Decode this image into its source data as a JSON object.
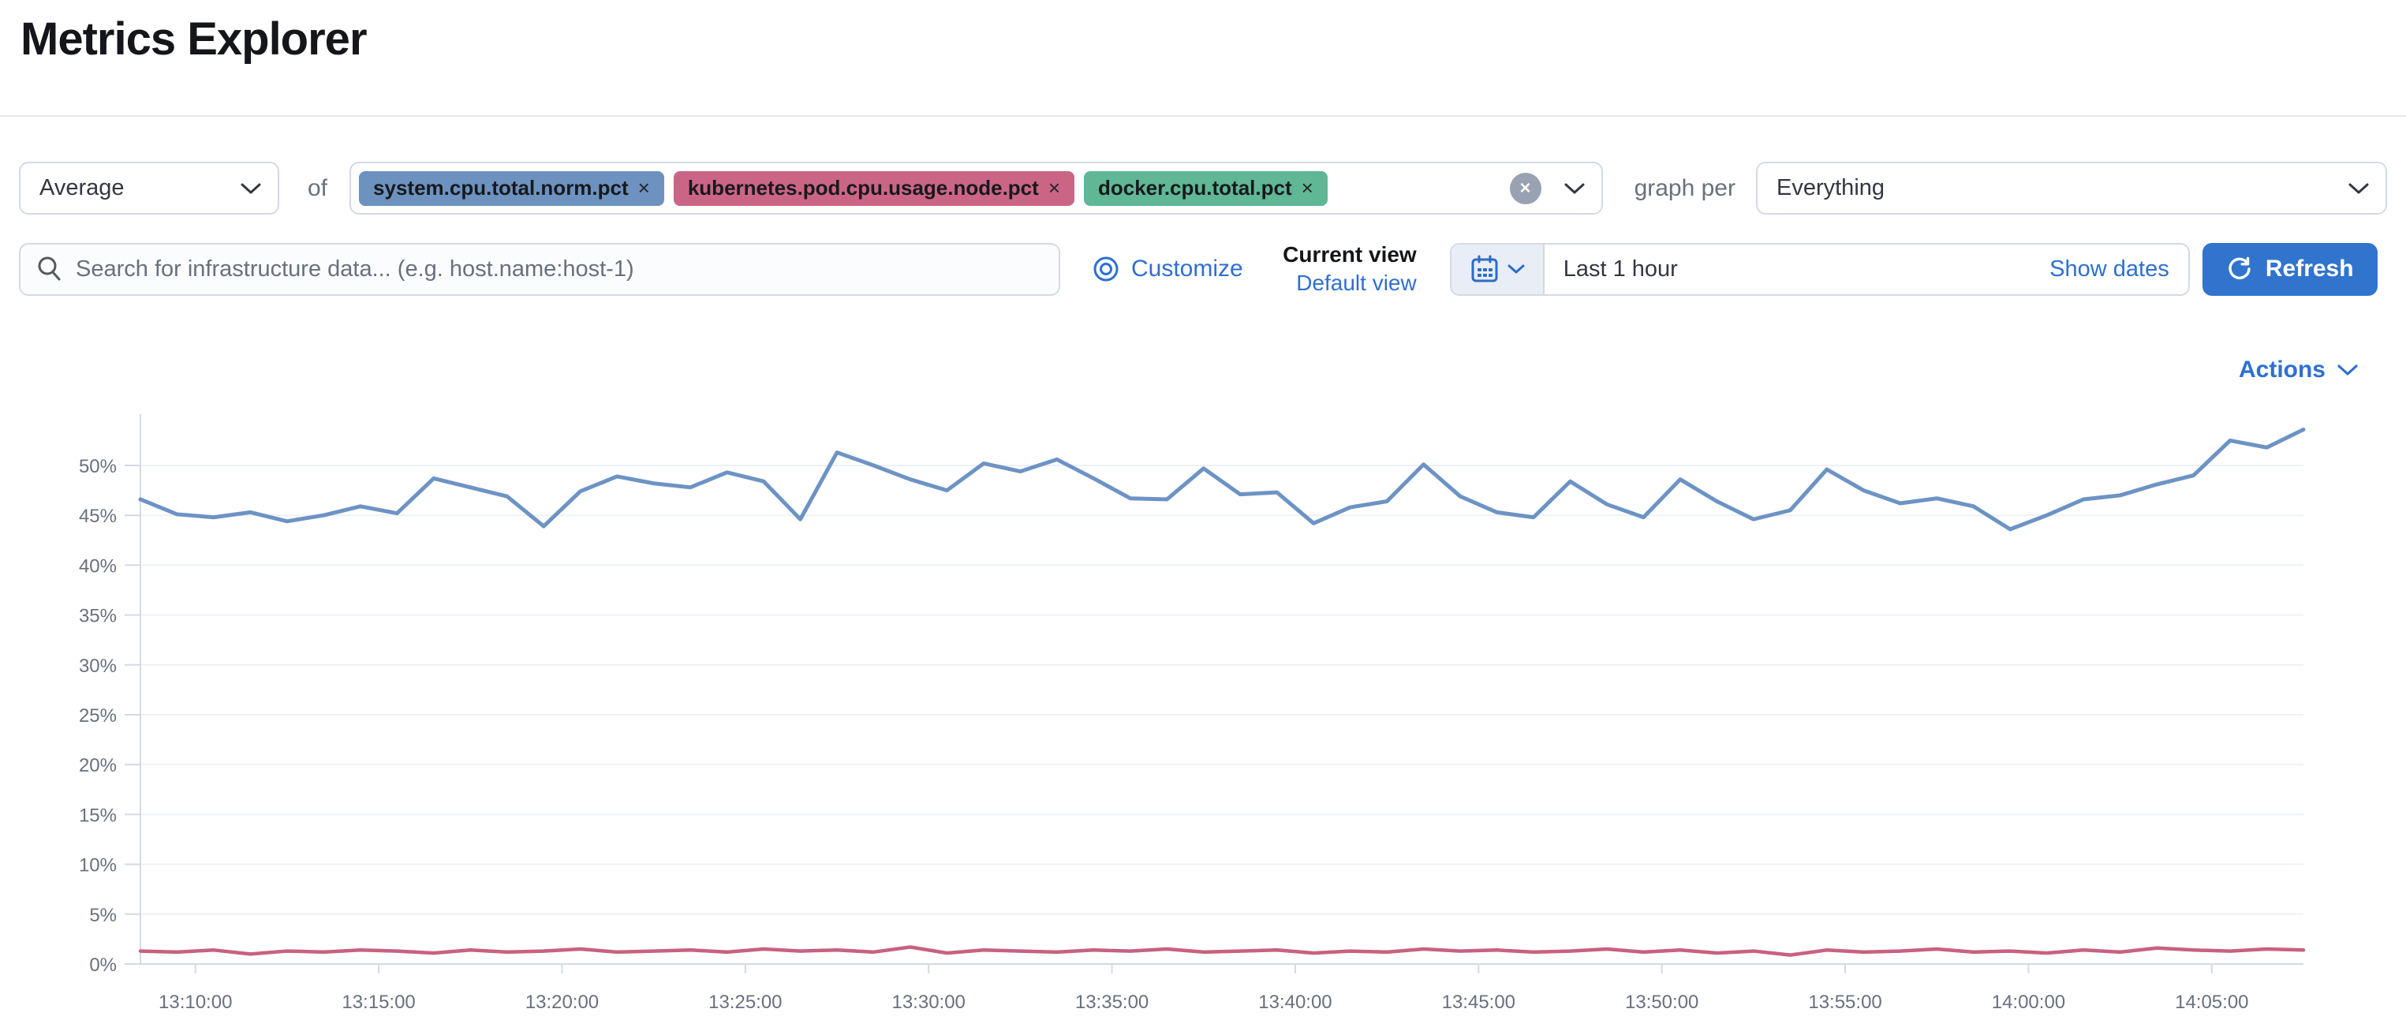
{
  "page": {
    "title": "Metrics Explorer"
  },
  "toolbar": {
    "aggregation": {
      "value": "Average"
    },
    "of_label": "of",
    "metrics": [
      {
        "label": "system.cpu.total.norm.pct",
        "remove": "×",
        "color": "#6d92bf"
      },
      {
        "label": "kubernetes.pod.cpu.usage.node.pct",
        "remove": "×",
        "color": "#cb6586"
      },
      {
        "label": "docker.cpu.total.pct",
        "remove": "×",
        "color": "#5fb795"
      }
    ],
    "clear_all": "×",
    "graph_per_label": "graph per",
    "graph_per": {
      "value": "Everything"
    }
  },
  "searchbar": {
    "placeholder": "Search for infrastructure data... (e.g. host.name:host-1)",
    "value": "",
    "customize_label": "Customize",
    "current_view_label": "Current view",
    "view_name": "Default view",
    "time_range": "Last 1 hour",
    "show_dates_label": "Show dates",
    "refresh_label": "Refresh"
  },
  "actions_label": "Actions",
  "chart_data": {
    "type": "line",
    "unit": "%",
    "ylim": [
      0,
      55
    ],
    "grid": true,
    "legend": "none",
    "y_ticks": [
      {
        "v": 0,
        "label": "0%"
      },
      {
        "v": 5,
        "label": "5%"
      },
      {
        "v": 10,
        "label": "10%"
      },
      {
        "v": 15,
        "label": "15%"
      },
      {
        "v": 20,
        "label": "20%"
      },
      {
        "v": 25,
        "label": "25%"
      },
      {
        "v": 30,
        "label": "30%"
      },
      {
        "v": 35,
        "label": "35%"
      },
      {
        "v": 40,
        "label": "40%"
      },
      {
        "v": 45,
        "label": "45%"
      },
      {
        "v": 50,
        "label": "50%"
      }
    ],
    "x_range_minutes": [
      0,
      59
    ],
    "x_ticks": [
      {
        "m": 1.5,
        "label": "13:10:00"
      },
      {
        "m": 6.5,
        "label": "13:15:00"
      },
      {
        "m": 11.5,
        "label": "13:20:00"
      },
      {
        "m": 16.5,
        "label": "13:25:00"
      },
      {
        "m": 21.5,
        "label": "13:30:00"
      },
      {
        "m": 26.5,
        "label": "13:35:00"
      },
      {
        "m": 31.5,
        "label": "13:40:00"
      },
      {
        "m": 36.5,
        "label": "13:45:00"
      },
      {
        "m": 41.5,
        "label": "13:50:00"
      },
      {
        "m": 46.5,
        "label": "13:55:00"
      },
      {
        "m": 51.5,
        "label": "14:00:00"
      },
      {
        "m": 56.5,
        "label": "14:05:00"
      }
    ],
    "series": [
      {
        "name": "system.cpu.total.norm.pct",
        "color": "#6d93c4",
        "stroke_width": 5,
        "values": [
          46.6,
          45.1,
          44.8,
          45.3,
          44.4,
          45.0,
          45.9,
          45.2,
          48.7,
          47.8,
          46.9,
          43.9,
          47.4,
          48.9,
          48.2,
          47.8,
          49.3,
          48.4,
          44.6,
          51.3,
          50.0,
          48.6,
          47.5,
          50.2,
          49.4,
          50.6,
          48.7,
          46.7,
          46.6,
          49.7,
          47.1,
          47.3,
          44.2,
          45.8,
          46.4,
          50.1,
          46.9,
          45.3,
          44.8,
          48.4,
          46.1,
          44.8,
          48.6,
          46.4,
          44.6,
          45.5,
          49.6,
          47.5,
          46.2,
          46.7,
          45.9,
          43.6,
          45.0,
          46.6,
          47.0,
          48.1,
          49.0,
          52.5,
          51.8,
          53.6
        ]
      },
      {
        "name": "kubernetes.pod.cpu.usage.node.pct",
        "color": "#c8617f",
        "stroke_width": 4.5,
        "values": [
          1.3,
          1.2,
          1.4,
          1.0,
          1.3,
          1.2,
          1.4,
          1.3,
          1.1,
          1.4,
          1.2,
          1.3,
          1.5,
          1.2,
          1.3,
          1.4,
          1.2,
          1.5,
          1.3,
          1.4,
          1.2,
          1.7,
          1.1,
          1.4,
          1.3,
          1.2,
          1.4,
          1.3,
          1.5,
          1.2,
          1.3,
          1.4,
          1.1,
          1.3,
          1.2,
          1.5,
          1.3,
          1.4,
          1.2,
          1.3,
          1.5,
          1.2,
          1.4,
          1.1,
          1.3,
          0.9,
          1.4,
          1.2,
          1.3,
          1.5,
          1.2,
          1.3,
          1.1,
          1.4,
          1.2,
          1.6,
          1.4,
          1.3,
          1.5,
          1.4
        ]
      }
    ],
    "colors": {
      "axis": "#d3dae6",
      "gridline": "#eef1f6",
      "tick_text": "#69707d"
    }
  }
}
